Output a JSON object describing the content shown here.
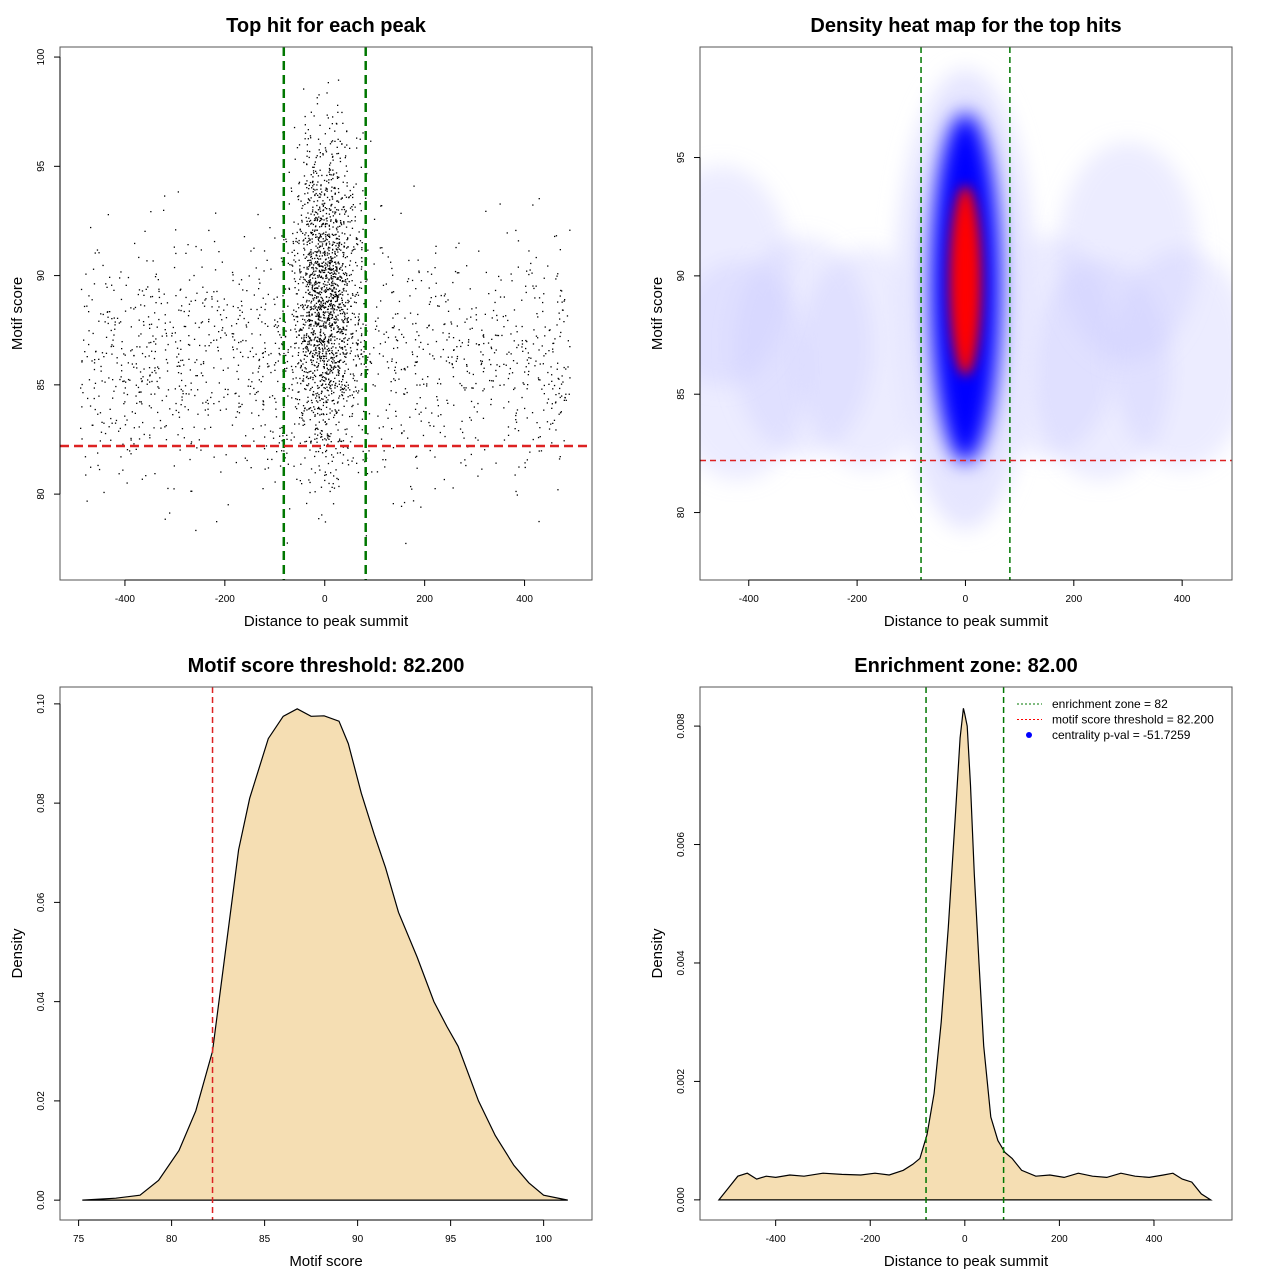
{
  "chart_data": [
    {
      "type": "scatter",
      "title": "Top hit for each peak",
      "xlabel": "Distance to peak summit",
      "ylabel": "Motif score",
      "xlim": [
        -530,
        535
      ],
      "ylim": [
        76.07,
        100.46
      ],
      "xticks": [
        -400,
        -200,
        0,
        200,
        400
      ],
      "yticks": [
        80,
        85,
        90,
        95,
        100
      ],
      "vlines": {
        "values": [
          -82,
          82
        ],
        "color": "#007700"
      },
      "hlines": {
        "values": [
          82.2
        ],
        "color": "#dd2222"
      },
      "points_generator": {
        "seed": 7,
        "groups": [
          {
            "n": 1800,
            "x_mean": 0,
            "x_sd": 32,
            "x_clip": 85,
            "y_mean": 89,
            "y_sd": 3.6
          },
          {
            "n": 1500,
            "x_min": -490,
            "x_max": 490,
            "y_mean": 86.2,
            "y_sd": 2.8
          }
        ]
      }
    },
    {
      "type": "heatmap",
      "title": "Density heat map for the top hits",
      "xlabel": "Distance to peak summit",
      "ylabel": "Motif score",
      "xlim": [
        -490,
        492
      ],
      "ylim": [
        77.15,
        99.67
      ],
      "xticks": [
        -400,
        -200,
        0,
        200,
        400
      ],
      "yticks": [
        80,
        85,
        90,
        95
      ],
      "vlines": {
        "values": [
          -82,
          82
        ],
        "color": "#007700"
      },
      "hlines": {
        "values": [
          82.2
        ],
        "color": "#dd2222"
      },
      "colors": {
        "low": "#ffffff",
        "mid": "#0000ff",
        "high": "#ff0000"
      },
      "peak": {
        "x": 0,
        "y": 89.5
      }
    },
    {
      "type": "area",
      "title": "Motif score threshold: 82.200",
      "xlabel": "Motif score",
      "ylabel": "Density",
      "xlim": [
        74,
        102.6
      ],
      "ylim": [
        -0.004,
        0.1034
      ],
      "xticks": [
        75,
        80,
        85,
        90,
        95,
        100
      ],
      "yticks": [
        0.0,
        0.02,
        0.04,
        0.06,
        0.08,
        0.1
      ],
      "ytick_labels": [
        "0.00",
        "0.02",
        "0.04",
        "0.06",
        "0.08",
        "0.10"
      ],
      "vlines": {
        "values": [
          82.2
        ],
        "color": "#dd2222"
      },
      "fill": "#f5deb3",
      "x": [
        75.2,
        77,
        78.3,
        79.3,
        80.4,
        81.3,
        82.2,
        83.6,
        84.2,
        85.2,
        86,
        86.75,
        87.5,
        88.2,
        89,
        89.5,
        90.2,
        90.9,
        91.5,
        92.2,
        93.2,
        94.1,
        94.8,
        95.4,
        96.5,
        97.4,
        98.4,
        99.2,
        100,
        101.3
      ],
      "y": [
        0,
        0.0004,
        0.001,
        0.004,
        0.01,
        0.018,
        0.03,
        0.0706,
        0.081,
        0.093,
        0.0975,
        0.099,
        0.0975,
        0.0976,
        0.0965,
        0.092,
        0.082,
        0.0736,
        0.067,
        0.058,
        0.049,
        0.04,
        0.035,
        0.031,
        0.02,
        0.013,
        0.007,
        0.0035,
        0.001,
        0
      ]
    },
    {
      "type": "area",
      "title": "Enrichment zone: 82.00",
      "xlabel": "Distance to peak summit",
      "ylabel": "Density",
      "xlim": [
        -560,
        565
      ],
      "ylim": [
        -0.00034,
        0.00866
      ],
      "xticks": [
        -400,
        -200,
        0,
        200,
        400
      ],
      "yticks": [
        0,
        0.002,
        0.004,
        0.006,
        0.008
      ],
      "ytick_labels": [
        "0.000",
        "0.002",
        "0.004",
        "0.006",
        "0.008"
      ],
      "vlines": {
        "values": [
          -82,
          82
        ],
        "color": "#007700"
      },
      "fill": "#f5deb3",
      "x": [
        -520,
        -500,
        -480,
        -460,
        -440,
        -420,
        -400,
        -370,
        -340,
        -300,
        -260,
        -220,
        -190,
        -160,
        -130,
        -110,
        -95,
        -80,
        -65,
        -50,
        -35,
        -20,
        -10,
        -3,
        0,
        5,
        12,
        20,
        30,
        40,
        55,
        70,
        85,
        100,
        120,
        150,
        180,
        210,
        240,
        270,
        300,
        330,
        360,
        390,
        420,
        440,
        460,
        480,
        500,
        520
      ],
      "y": [
        0,
        0.0002,
        0.0004,
        0.00045,
        0.00035,
        0.0004,
        0.00038,
        0.00042,
        0.0004,
        0.00045,
        0.00043,
        0.00042,
        0.00045,
        0.00042,
        0.0005,
        0.0006,
        0.0007,
        0.0011,
        0.0018,
        0.003,
        0.0046,
        0.0065,
        0.0078,
        0.0083,
        0.0082,
        0.008,
        0.007,
        0.0055,
        0.004,
        0.0026,
        0.0014,
        0.001,
        0.0008,
        0.0007,
        0.0005,
        0.0004,
        0.00042,
        0.00038,
        0.00045,
        0.0004,
        0.00038,
        0.00045,
        0.0004,
        0.00038,
        0.00042,
        0.00045,
        0.00035,
        0.0003,
        0.0001,
        0
      ]
    }
  ],
  "legend": {
    "placement": "top-right",
    "entries": [
      {
        "label": "enrichment zone = 82",
        "color": "#007700",
        "style": "dotted"
      },
      {
        "label": "motif score threshold = 82.200",
        "color": "#ff0000",
        "style": "dotted"
      },
      {
        "label": "centrality p-val = -51.7259",
        "color": "#0000ff",
        "style": "point"
      }
    ]
  }
}
